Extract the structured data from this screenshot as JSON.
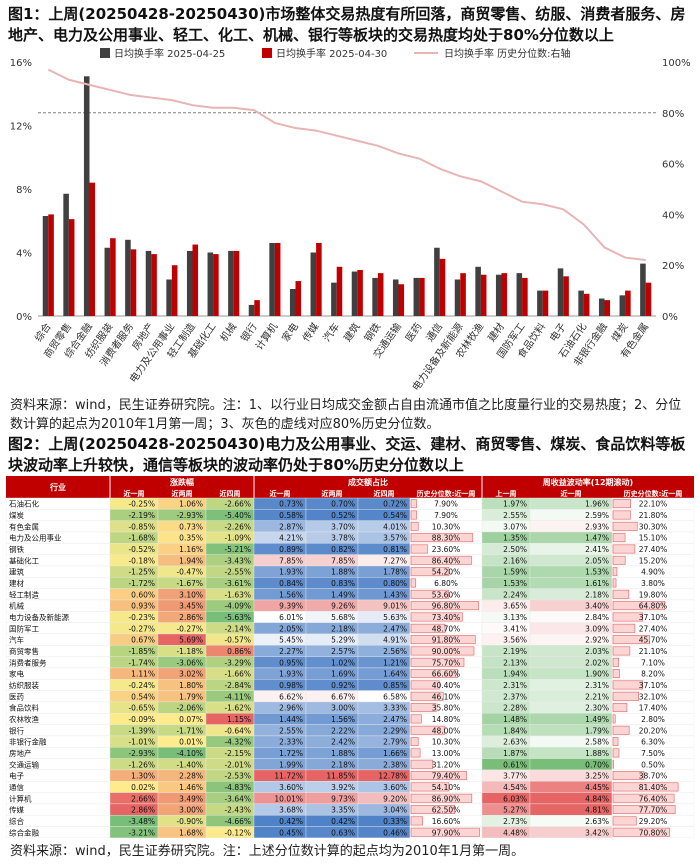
{
  "figure1": {
    "title": "图1：上周(20250428-20250430)市场整体交易热度有所回落，商贸零售、纺服、消费者服务、房地产、电力及公用事业、轻工、化工、机械、银行等板块的交易热度均处于80%分位数以上",
    "source": "资料来源：wind，民生证券研究院。注：1、以行业日均成交金额占自由流通市值之比度量行业的交易热度；2、分位数计算的起点为2010年1月第一周；3、灰色的虚线对应80%历史分位数。"
  },
  "figure2": {
    "title": "图2：上周(20250428-20250430)电力及公用事业、交运、建材、商贸零售、煤炭、食品饮料等板块波动率上升较快，通信等板块的波动率仍处于80%历史分位数以上",
    "source": "资料来源：wind，民生证券研究院。注：上述分位数计算的起点均为2010年1月第一周。",
    "group_headers": [
      "涨跌幅",
      "成交额占比",
      "周收益波动率(12期滚动)"
    ],
    "col_headers": [
      "行业",
      "近一周",
      "近两周",
      "近四周",
      "近一周",
      "近两周",
      "近四周",
      "历史分位数:近一周",
      "上一周",
      "近一周",
      "历史分位数:近一周"
    ],
    "rows": [
      [
        "石油石化",
        "-0.25%",
        "1.06%",
        "-2.66%",
        "0.73%",
        "0.70%",
        "0.72%",
        "7.90%",
        "1.97%",
        "1.96%",
        "22.10%"
      ],
      [
        "煤炭",
        "-2.19%",
        "-2.93%",
        "-5.40%",
        "0.58%",
        "0.52%",
        "0.54%",
        "7.90%",
        "2.55%",
        "2.59%",
        "21.80%"
      ],
      [
        "有色金属",
        "-0.85%",
        "0.73%",
        "-2.26%",
        "2.87%",
        "3.70%",
        "4.01%",
        "10.30%",
        "3.07%",
        "2.93%",
        "30.30%"
      ],
      [
        "电力及公用事业",
        "-1.68%",
        "0.35%",
        "-1.09%",
        "4.21%",
        "3.78%",
        "3.57%",
        "88.30%",
        "1.35%",
        "1.47%",
        "15.10%"
      ],
      [
        "钢铁",
        "-0.52%",
        "1.16%",
        "-5.21%",
        "0.89%",
        "0.82%",
        "0.81%",
        "23.60%",
        "2.50%",
        "2.41%",
        "27.40%"
      ],
      [
        "基础化工",
        "-0.18%",
        "1.94%",
        "-3.43%",
        "7.85%",
        "7.85%",
        "7.27%",
        "86.40%",
        "2.16%",
        "2.05%",
        "15.20%"
      ],
      [
        "建筑",
        "-1.25%",
        "-0.47%",
        "-2.55%",
        "1.93%",
        "1.88%",
        "1.78%",
        "54.20%",
        "1.59%",
        "1.53%",
        "4.90%"
      ],
      [
        "建材",
        "-1.72%",
        "-1.67%",
        "-3.61%",
        "0.84%",
        "0.83%",
        "0.80%",
        "6.80%",
        "1.53%",
        "1.61%",
        "3.80%"
      ],
      [
        "轻工制造",
        "0.60%",
        "3.10%",
        "-1.63%",
        "1.56%",
        "1.49%",
        "1.43%",
        "53.60%",
        "2.24%",
        "2.18%",
        "19.80%"
      ],
      [
        "机械",
        "0.93%",
        "3.45%",
        "-4.09%",
        "9.39%",
        "9.26%",
        "9.01%",
        "96.80%",
        "3.65%",
        "3.40%",
        "64.80%"
      ],
      [
        "电力设备及新能源",
        "-0.23%",
        "2.86%",
        "-5.63%",
        "6.01%",
        "5.68%",
        "5.63%",
        "73.40%",
        "3.13%",
        "2.84%",
        "37.10%"
      ],
      [
        "国防军工",
        "-0.27%",
        "-0.27%",
        "-2.14%",
        "2.05%",
        "2.18%",
        "2.47%",
        "48.70%",
        "3.41%",
        "3.09%",
        "27.40%"
      ],
      [
        "汽车",
        "0.67%",
        "5.69%",
        "-0.57%",
        "5.45%",
        "5.29%",
        "4.91%",
        "91.80%",
        "3.56%",
        "2.92%",
        "45.70%"
      ],
      [
        "商贸零售",
        "-1.85%",
        "-1.18%",
        "0.86%",
        "2.27%",
        "2.57%",
        "2.56%",
        "90.00%",
        "2.19%",
        "2.03%",
        "21.10%"
      ],
      [
        "消费者服务",
        "-1.74%",
        "-3.06%",
        "-3.29%",
        "0.95%",
        "1.02%",
        "1.21%",
        "75.70%",
        "2.13%",
        "2.02%",
        "7.10%"
      ],
      [
        "家电",
        "1.11%",
        "3.02%",
        "-1.66%",
        "1.93%",
        "1.69%",
        "1.64%",
        "66.60%",
        "1.94%",
        "1.90%",
        "8.20%"
      ],
      [
        "纺织服装",
        "-0.24%",
        "1.80%",
        "-2.84%",
        "0.98%",
        "0.92%",
        "0.85%",
        "40.40%",
        "2.31%",
        "2.31%",
        "37.10%"
      ],
      [
        "医药",
        "0.54%",
        "1.79%",
        "-4.11%",
        "6.62%",
        "6.67%",
        "6.58%",
        "46.10%",
        "2.37%",
        "2.21%",
        "32.10%"
      ],
      [
        "食品饮料",
        "-0.65%",
        "-2.06%",
        "-1.62%",
        "2.96%",
        "3.00%",
        "3.33%",
        "35.80%",
        "2.28%",
        "2.30%",
        "17.40%"
      ],
      [
        "农林牧渔",
        "-0.09%",
        "0.07%",
        "1.15%",
        "1.44%",
        "1.56%",
        "2.47%",
        "14.80%",
        "1.48%",
        "1.49%",
        "2.80%"
      ],
      [
        "银行",
        "-1.39%",
        "-1.71%",
        "-0.64%",
        "2.55%",
        "2.22%",
        "2.29%",
        "48.00%",
        "1.84%",
        "1.79%",
        "20.20%"
      ],
      [
        "非银行金融",
        "-1.01%",
        "0.01%",
        "-4.32%",
        "2.33%",
        "2.42%",
        "2.79%",
        "10.30%",
        "2.63%",
        "2.58%",
        "6.30%"
      ],
      [
        "房地产",
        "-2.93%",
        "-4.10%",
        "-2.15%",
        "1.72%",
        "1.88%",
        "1.66%",
        "13.00%",
        "1.87%",
        "1.88%",
        "7.50%"
      ],
      [
        "交通运输",
        "-1.26%",
        "-1.40%",
        "-2.01%",
        "1.99%",
        "2.18%",
        "2.38%",
        "31.20%",
        "0.61%",
        "0.70%",
        "0.50%"
      ],
      [
        "电子",
        "1.30%",
        "2.28%",
        "-2.53%",
        "11.72%",
        "11.85%",
        "12.78%",
        "79.40%",
        "3.77%",
        "3.25%",
        "38.70%"
      ],
      [
        "通信",
        "0.02%",
        "1.46%",
        "-4.83%",
        "3.60%",
        "3.92%",
        "3.60%",
        "54.10%",
        "4.54%",
        "4.45%",
        "81.40%"
      ],
      [
        "计算机",
        "2.66%",
        "3.49%",
        "-3.64%",
        "10.01%",
        "9.73%",
        "9.20%",
        "86.90%",
        "6.03%",
        "4.84%",
        "76.40%"
      ],
      [
        "传媒",
        "2.86%",
        "3.00%",
        "-2.43%",
        "3.68%",
        "3.35%",
        "3.04%",
        "62.50%",
        "5.27%",
        "4.81%",
        "77.70%"
      ],
      [
        "综合",
        "-3.48%",
        "-0.90%",
        "-4.66%",
        "0.42%",
        "0.42%",
        "0.33%",
        "16.60%",
        "2.73%",
        "2.63%",
        "29.20%"
      ],
      [
        "综合金融",
        "-3.21%",
        "1.68%",
        "-0.12%",
        "0.45%",
        "0.63%",
        "0.46%",
        "97.90%",
        "4.48%",
        "3.42%",
        "70.80%"
      ]
    ]
  },
  "chart_data": {
    "type": "bar",
    "legend": [
      "日均换手率 2025-04-25",
      "日均换手率 2025-04-30",
      "日均换手率 历史分位数:右轴"
    ],
    "legend_placement": "top",
    "categories": [
      "综合",
      "商贸零售",
      "综合金融",
      "纺织服装",
      "消费者服务",
      "房地产",
      "电力及公用事业",
      "轻工制造",
      "基础化工",
      "机械",
      "银行",
      "计算机",
      "家电",
      "传媒",
      "汽车",
      "建筑",
      "钢铁",
      "交通运输",
      "医药",
      "通信",
      "电力设备及新能源",
      "农林牧渔",
      "建材",
      "国防军工",
      "食品饮料",
      "电子",
      "石油石化",
      "非银行金融",
      "煤炭",
      "有色金属"
    ],
    "series": [
      {
        "name": "日均换手率 2025-04-25",
        "color": "#404040",
        "values": [
          6.3,
          7.7,
          15.1,
          4.3,
          4.8,
          4.1,
          2.3,
          4.1,
          4.0,
          4.1,
          0.7,
          4.6,
          1.7,
          4.0,
          2.1,
          2.8,
          2.4,
          2.3,
          2.4,
          4.3,
          2.3,
          3.1,
          2.6,
          2.7,
          1.6,
          3.0,
          1.6,
          1.1,
          1.3,
          3.3
        ]
      },
      {
        "name": "日均换手率 2025-04-30",
        "color": "#c00000",
        "values": [
          6.4,
          6.1,
          8.4,
          4.9,
          4.2,
          3.9,
          3.2,
          4.5,
          3.9,
          4.1,
          1.0,
          4.6,
          2.2,
          4.6,
          3.1,
          2.9,
          2.7,
          2.0,
          2.4,
          3.6,
          2.7,
          2.6,
          2.7,
          2.4,
          1.6,
          2.5,
          1.4,
          1.0,
          1.6,
          2.1
        ]
      },
      {
        "name": "日均换手率 历史分位数:右轴",
        "axis": "right",
        "color": "#e8b4b4",
        "type": "line",
        "values": [
          97,
          93,
          91,
          89,
          87,
          86,
          85,
          83,
          82,
          82,
          81,
          76,
          74,
          73,
          71,
          69,
          67,
          64,
          62,
          58,
          55,
          53,
          49,
          45,
          44,
          42,
          36,
          27,
          23,
          22
        ]
      }
    ],
    "ylim_left": [
      0,
      16
    ],
    "yticks_left": [
      "0%",
      "4%",
      "8%",
      "12%",
      "16%"
    ],
    "ylim_right": [
      0,
      100
    ],
    "yticks_right": [
      "0%",
      "20%",
      "40%",
      "60%",
      "80%",
      "100%"
    ],
    "reference_line_right": 80,
    "colors": {
      "bar1": "#404040",
      "bar2": "#c00000",
      "line": "#e8b4b4",
      "refline": "#808080"
    }
  }
}
